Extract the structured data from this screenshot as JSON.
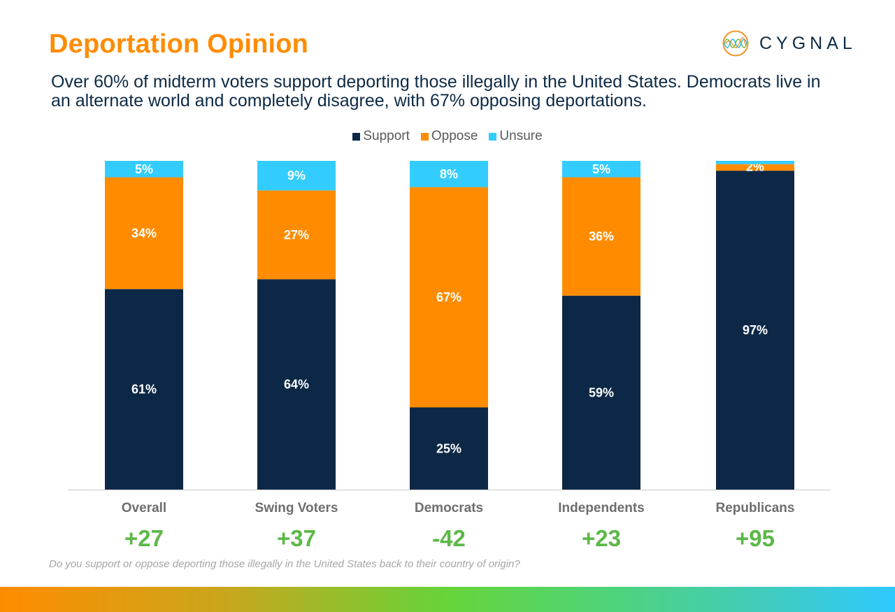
{
  "header": {
    "title": "Deportation Opinion",
    "subtitle": "Over 60% of midterm voters support deporting those illegally in the United States. Democrats live in an alternate world and completely disagree, with 67% opposing deportations.",
    "logo_text": "CYGNAL",
    "logo_icon": "wave-circle-icon"
  },
  "footnote": "Do you support or oppose deporting those illegally in the United States back to their country of origin?",
  "colors": {
    "support": "#0d2846",
    "oppose": "#ff8c00",
    "unsure": "#33ccff",
    "net": "#5cb848",
    "title": "#ff8c00",
    "category_label": "#6e6e6e"
  },
  "chart_data": {
    "type": "bar",
    "stacked": true,
    "title": "",
    "xlabel": "",
    "ylabel": "",
    "ylim": [
      0,
      100
    ],
    "grid": false,
    "legend_position": "top-center",
    "categories": [
      "Overall",
      "Swing Voters",
      "Democrats",
      "Independents",
      "Republicans"
    ],
    "series": [
      {
        "name": "Support",
        "values": [
          61,
          64,
          25,
          59,
          97
        ],
        "labels": [
          "61%",
          "64%",
          "25%",
          "59%",
          "97%"
        ]
      },
      {
        "name": "Oppose",
        "values": [
          34,
          27,
          67,
          36,
          2
        ],
        "labels": [
          "34%",
          "27%",
          "67%",
          "36%",
          "2%"
        ]
      },
      {
        "name": "Unsure",
        "values": [
          5,
          9,
          8,
          5,
          1
        ],
        "labels": [
          "5%",
          "9%",
          "8%",
          "5%",
          ""
        ]
      }
    ],
    "net_labels": [
      "+27",
      "+37",
      "-42",
      "+23",
      "+95"
    ]
  }
}
